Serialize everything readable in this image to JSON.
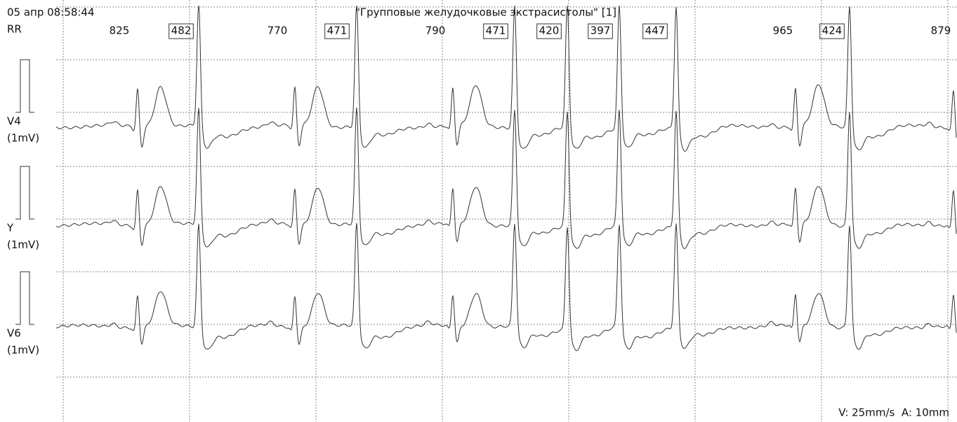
{
  "header": {
    "timestamp": "05 апр 08:58:44",
    "rr_label": "RR",
    "title": "\"Групповые желудочковые экстрасистолы\" [1]"
  },
  "rr_intervals": [
    {
      "value": 825,
      "boxed": false
    },
    {
      "value": 482,
      "boxed": true
    },
    {
      "value": 770,
      "boxed": false
    },
    {
      "value": 471,
      "boxed": true
    },
    {
      "value": 790,
      "boxed": false
    },
    {
      "value": 471,
      "boxed": true
    },
    {
      "value": 420,
      "boxed": true
    },
    {
      "value": 397,
      "boxed": true
    },
    {
      "value": 447,
      "boxed": true
    },
    {
      "value": 965,
      "boxed": false
    },
    {
      "value": 424,
      "boxed": true
    },
    {
      "value": 879,
      "boxed": false
    }
  ],
  "leads": [
    {
      "name": "V4",
      "scale": "(1mV)"
    },
    {
      "name": "Y",
      "scale": "(1mV)"
    },
    {
      "name": "V6",
      "scale": "(1mV)"
    }
  ],
  "footer": "V: 25mm/s  A: 10mm"
}
